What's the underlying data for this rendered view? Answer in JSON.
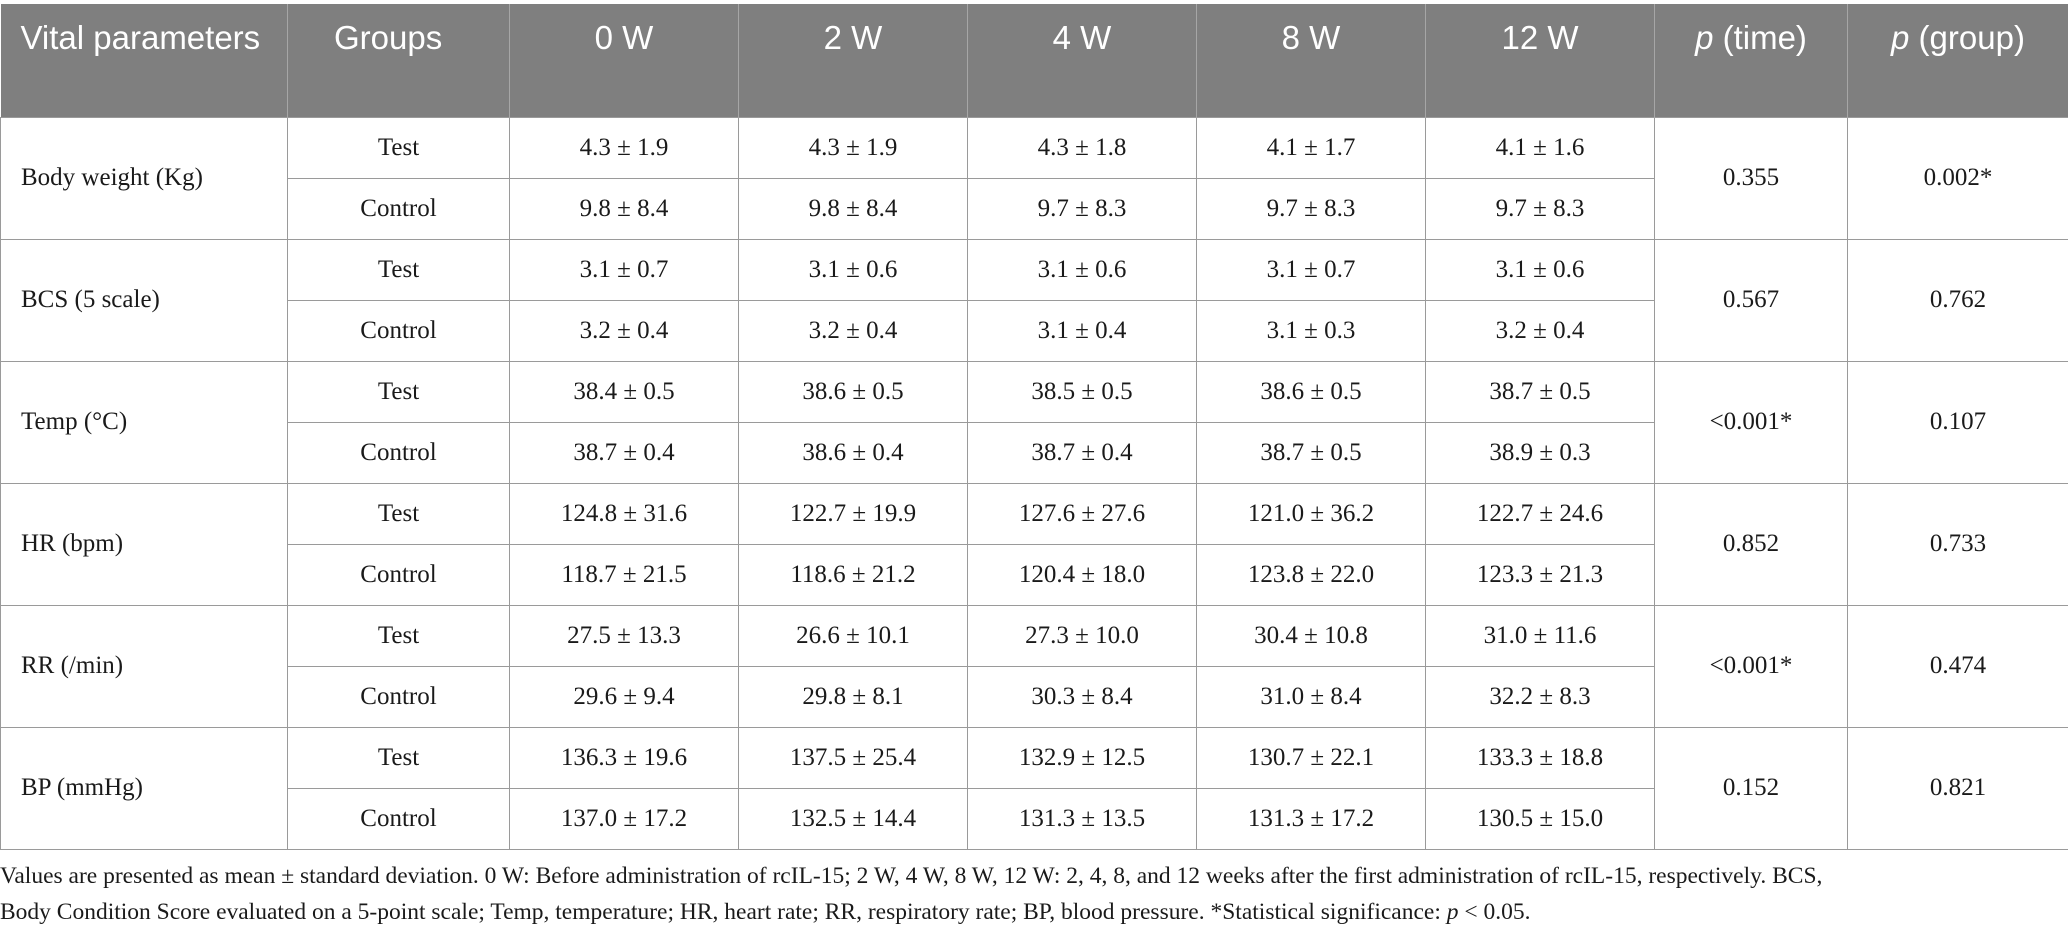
{
  "headers": {
    "parameter": "Vital parameters",
    "groups": "Groups",
    "w0": "0 W",
    "w2": "2 W",
    "w4": "4 W",
    "w8": "8 W",
    "w12": "12 W",
    "p_time_p": "p",
    "p_time_label": " (time)",
    "p_group_p": "p",
    "p_group_label": " (group)"
  },
  "rows": [
    {
      "parameter": "Body weight (Kg)",
      "test_label": "Test",
      "test": [
        "4.3 ± 1.9",
        "4.3 ± 1.9",
        "4.3 ± 1.8",
        "4.1 ± 1.7",
        "4.1 ± 1.6"
      ],
      "control_label": "Control",
      "control": [
        "9.8 ± 8.4",
        "9.8 ± 8.4",
        "9.7 ± 8.3",
        "9.7 ± 8.3",
        "9.7 ± 8.3"
      ],
      "p_time": "0.355",
      "p_group": "0.002*"
    },
    {
      "parameter": "BCS (5 scale)",
      "test_label": "Test",
      "test": [
        "3.1 ± 0.7",
        "3.1 ± 0.6",
        "3.1 ± 0.6",
        "3.1 ± 0.7",
        "3.1 ± 0.6"
      ],
      "control_label": "Control",
      "control": [
        "3.2 ± 0.4",
        "3.2 ± 0.4",
        "3.1 ± 0.4",
        "3.1 ± 0.3",
        "3.2 ± 0.4"
      ],
      "p_time": "0.567",
      "p_group": "0.762"
    },
    {
      "parameter": "Temp (°C)",
      "test_label": "Test",
      "test": [
        "38.4 ± 0.5",
        "38.6 ± 0.5",
        "38.5 ± 0.5",
        "38.6 ± 0.5",
        "38.7 ± 0.5"
      ],
      "control_label": "Control",
      "control": [
        "38.7 ± 0.4",
        "38.6 ± 0.4",
        "38.7 ± 0.4",
        "38.7 ± 0.5",
        "38.9 ± 0.3"
      ],
      "p_time": "<0.001*",
      "p_group": "0.107"
    },
    {
      "parameter": "HR (bpm)",
      "test_label": "Test",
      "test": [
        "124.8 ± 31.6",
        "122.7 ± 19.9",
        "127.6 ± 27.6",
        "121.0 ± 36.2",
        "122.7 ± 24.6"
      ],
      "control_label": "Control",
      "control": [
        "118.7 ± 21.5",
        "118.6 ± 21.2",
        "120.4 ± 18.0",
        "123.8 ± 22.0",
        "123.3 ± 21.3"
      ],
      "p_time": "0.852",
      "p_group": "0.733"
    },
    {
      "parameter": "RR (/min)",
      "test_label": "Test",
      "test": [
        "27.5 ± 13.3",
        "26.6 ± 10.1",
        "27.3 ± 10.0",
        "30.4 ± 10.8",
        "31.0 ± 11.6"
      ],
      "control_label": "Control",
      "control": [
        "29.6 ± 9.4",
        "29.8 ± 8.1",
        "30.3 ± 8.4",
        "31.0 ± 8.4",
        "32.2 ± 8.3"
      ],
      "p_time": "<0.001*",
      "p_group": "0.474"
    },
    {
      "parameter": "BP (mmHg)",
      "test_label": "Test",
      "test": [
        "136.3 ± 19.6",
        "137.5 ± 25.4",
        "132.9 ± 12.5",
        "130.7 ± 22.1",
        "133.3 ± 18.8"
      ],
      "control_label": "Control",
      "control": [
        "137.0 ± 17.2",
        "132.5 ± 14.4",
        "131.3 ± 13.5",
        "131.3 ± 17.2",
        "130.5 ± 15.0"
      ],
      "p_time": "0.152",
      "p_group": "0.821"
    }
  ],
  "footnote": {
    "line1": "Values are presented as mean ± standard deviation. 0 W: Before administration of rcIL-15; 2 W, 4 W, 8 W, 12 W: 2, 4, 8, and 12 weeks after the first administration of rcIL-15, respectively. BCS,",
    "line2_pre": "Body Condition Score evaluated on a 5-point scale; Temp, temperature; HR, heart rate; RR, respiratory rate; BP, blood pressure. *Statistical significance: ",
    "line2_p": "p",
    "line2_post": " < 0.05."
  }
}
